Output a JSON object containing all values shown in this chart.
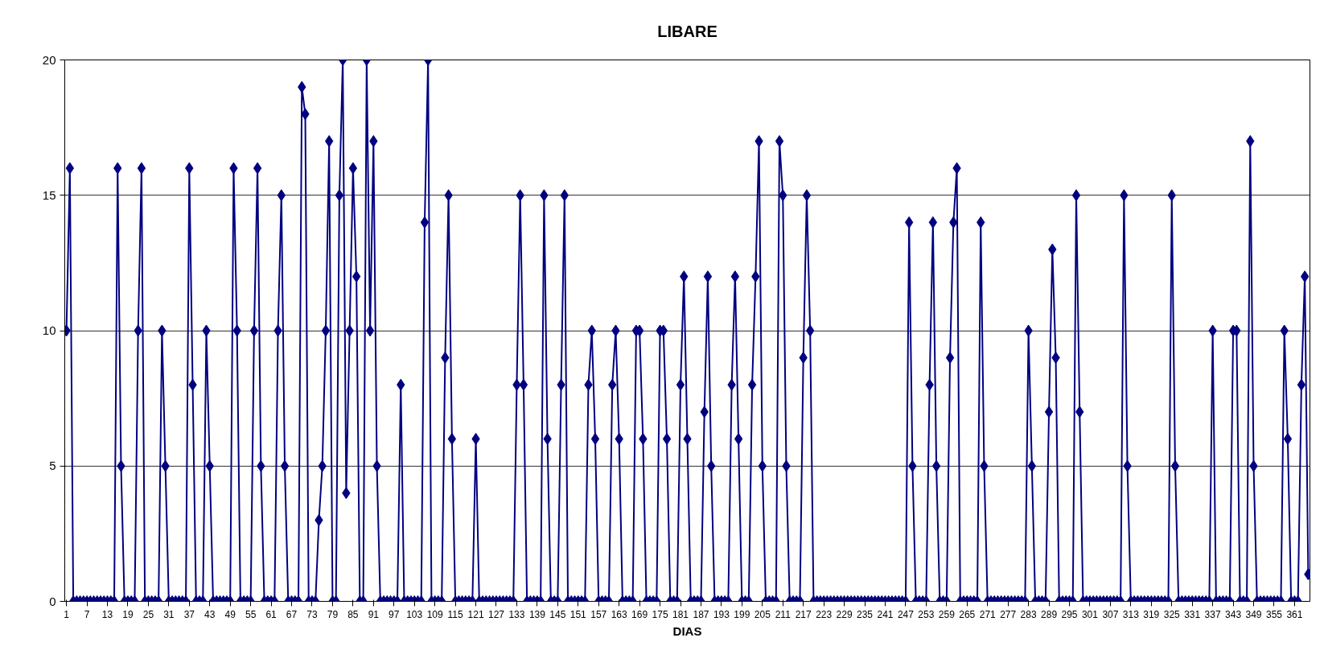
{
  "chart_data": {
    "type": "line",
    "title": "LIBARE",
    "xlabel": "DIAS",
    "categories": [
      "1",
      null,
      null,
      null,
      null,
      null,
      "7",
      null,
      null,
      null,
      null,
      null,
      "13",
      null,
      null,
      null,
      null,
      null,
      "19",
      null,
      null,
      null,
      null,
      null,
      "25",
      null,
      null,
      null,
      null,
      null,
      "31",
      null,
      null,
      null,
      null,
      null,
      "37",
      null,
      null,
      null,
      null,
      null,
      "43",
      null,
      null,
      null,
      null,
      null,
      "49",
      null,
      null,
      null,
      null,
      null,
      "55",
      null,
      null,
      null,
      null,
      null,
      "61",
      null,
      null,
      null,
      null,
      null,
      "67",
      null,
      null,
      null,
      null,
      null,
      "73",
      null,
      null,
      null,
      null,
      null,
      "79",
      null,
      null,
      null,
      null,
      null,
      "85",
      null,
      null,
      null,
      null,
      null,
      "91",
      null,
      null,
      null,
      null,
      null,
      "97",
      null,
      null,
      null,
      null,
      null,
      "103",
      null,
      null,
      null,
      null,
      null,
      "109",
      null,
      null,
      null,
      null,
      null,
      "115",
      null,
      null,
      null,
      null,
      null,
      "121",
      null,
      null,
      null,
      null,
      null,
      "127",
      null,
      null,
      null,
      null,
      null,
      "133",
      null,
      null,
      null,
      null,
      null,
      "139",
      null,
      null,
      null,
      null,
      null,
      "145",
      null,
      null,
      null,
      null,
      null,
      "151",
      null,
      null,
      null,
      null,
      null,
      "157",
      null,
      null,
      null,
      null,
      null,
      "163",
      null,
      null,
      null,
      null,
      null,
      "169",
      null,
      null,
      null,
      null,
      null,
      "175",
      null,
      null,
      null,
      null,
      null,
      "181",
      null,
      null,
      null,
      null,
      null,
      "187",
      null,
      null,
      null,
      null,
      null,
      "193",
      null,
      null,
      null,
      null,
      null,
      "199",
      null,
      null,
      null,
      null,
      null,
      "205",
      null,
      null,
      null,
      null,
      null,
      "211",
      null,
      null,
      null,
      null,
      null,
      "217",
      null,
      null,
      null,
      null,
      null,
      "223",
      null,
      null,
      null,
      null,
      null,
      "229",
      null,
      null,
      null,
      null,
      null,
      "235",
      null,
      null,
      null,
      null,
      null,
      "241",
      null,
      null,
      null,
      null,
      null,
      "247",
      null,
      null,
      null,
      null,
      null,
      "253",
      null,
      null,
      null,
      null,
      null,
      "259",
      null,
      null,
      null,
      null,
      null,
      "265",
      null,
      null,
      null,
      null,
      null,
      "271",
      null,
      null,
      null,
      null,
      null,
      "277",
      null,
      null,
      null,
      null,
      null,
      "283",
      null,
      null,
      null,
      null,
      null,
      "289",
      null,
      null,
      null,
      null,
      null,
      "295",
      null,
      null,
      null,
      null,
      null,
      "301",
      null,
      null,
      null,
      null,
      null,
      "307",
      null,
      null,
      null,
      null,
      null,
      "313",
      null,
      null,
      null,
      null,
      null,
      "319",
      null,
      null,
      null,
      null,
      null,
      "325",
      null,
      null,
      null,
      null,
      null,
      "331",
      null,
      null,
      null,
      null,
      null,
      "337",
      null,
      null,
      null,
      null,
      null,
      "343",
      null,
      null,
      null,
      null,
      null,
      "349",
      null,
      null,
      null,
      null,
      null,
      "355",
      null,
      null,
      null,
      null,
      null,
      "361",
      null,
      null,
      null,
      null
    ],
    "series": [
      {
        "color": "#000080",
        "values": [
          10,
          16,
          0,
          0,
          0,
          0,
          0,
          0,
          0,
          0,
          0,
          0,
          0,
          0,
          0,
          16,
          5,
          0,
          0,
          0,
          0,
          10,
          16,
          0,
          0,
          0,
          0,
          0,
          10,
          5,
          0,
          0,
          0,
          0,
          0,
          0,
          16,
          8,
          0,
          0,
          0,
          10,
          5,
          0,
          0,
          0,
          0,
          0,
          0,
          16,
          10,
          0,
          0,
          0,
          0,
          10,
          16,
          5,
          0,
          0,
          0,
          0,
          10,
          15,
          5,
          0,
          0,
          0,
          0,
          19,
          18,
          0,
          0,
          0,
          3,
          5,
          10,
          17,
          0,
          0,
          15,
          20,
          4,
          10,
          16,
          12,
          0,
          0,
          20,
          10,
          17,
          5,
          0,
          0,
          0,
          0,
          0,
          0,
          8,
          0,
          0,
          0,
          0,
          0,
          0,
          14,
          20,
          0,
          0,
          0,
          0,
          9,
          15,
          6,
          0,
          0,
          0,
          0,
          0,
          0,
          6,
          0,
          0,
          0,
          0,
          0,
          0,
          0,
          0,
          0,
          0,
          0,
          8,
          15,
          8,
          0,
          0,
          0,
          0,
          0,
          15,
          6,
          0,
          0,
          0,
          8,
          15,
          0,
          0,
          0,
          0,
          0,
          0,
          8,
          10,
          6,
          0,
          0,
          0,
          0,
          8,
          10,
          6,
          0,
          0,
          0,
          0,
          10,
          10,
          6,
          0,
          0,
          0,
          0,
          10,
          10,
          6,
          0,
          0,
          0,
          8,
          12,
          6,
          0,
          0,
          0,
          0,
          7,
          12,
          5,
          0,
          0,
          0,
          0,
          0,
          8,
          12,
          6,
          0,
          0,
          0,
          8,
          12,
          17,
          5,
          0,
          0,
          0,
          0,
          17,
          15,
          5,
          0,
          0,
          0,
          0,
          9,
          15,
          10,
          0,
          0,
          0,
          0,
          0,
          0,
          0,
          0,
          0,
          0,
          0,
          0,
          0,
          0,
          0,
          0,
          0,
          0,
          0,
          0,
          0,
          0,
          0,
          0,
          0,
          0,
          0,
          0,
          14,
          5,
          0,
          0,
          0,
          0,
          8,
          14,
          5,
          0,
          0,
          0,
          9,
          14,
          16,
          0,
          0,
          0,
          0,
          0,
          0,
          14,
          5,
          0,
          0,
          0,
          0,
          0,
          0,
          0,
          0,
          0,
          0,
          0,
          0,
          10,
          5,
          0,
          0,
          0,
          0,
          7,
          13,
          9,
          0,
          0,
          0,
          0,
          0,
          15,
          7,
          0,
          0,
          0,
          0,
          0,
          0,
          0,
          0,
          0,
          0,
          0,
          0,
          15,
          5,
          0,
          0,
          0,
          0,
          0,
          0,
          0,
          0,
          0,
          0,
          0,
          0,
          15,
          5,
          0,
          0,
          0,
          0,
          0,
          0,
          0,
          0,
          0,
          0,
          10,
          0,
          0,
          0,
          0,
          0,
          10,
          10,
          0,
          0,
          0,
          17,
          5,
          0,
          0,
          0,
          0,
          0,
          0,
          0,
          0,
          10,
          6,
          0,
          0,
          0,
          8,
          12,
          1
        ]
      }
    ],
    "ylim": [
      0,
      20
    ],
    "yticks": [
      0,
      5,
      10,
      15,
      20
    ],
    "grid": "y",
    "marker": "diamond",
    "line_style": "solid"
  }
}
